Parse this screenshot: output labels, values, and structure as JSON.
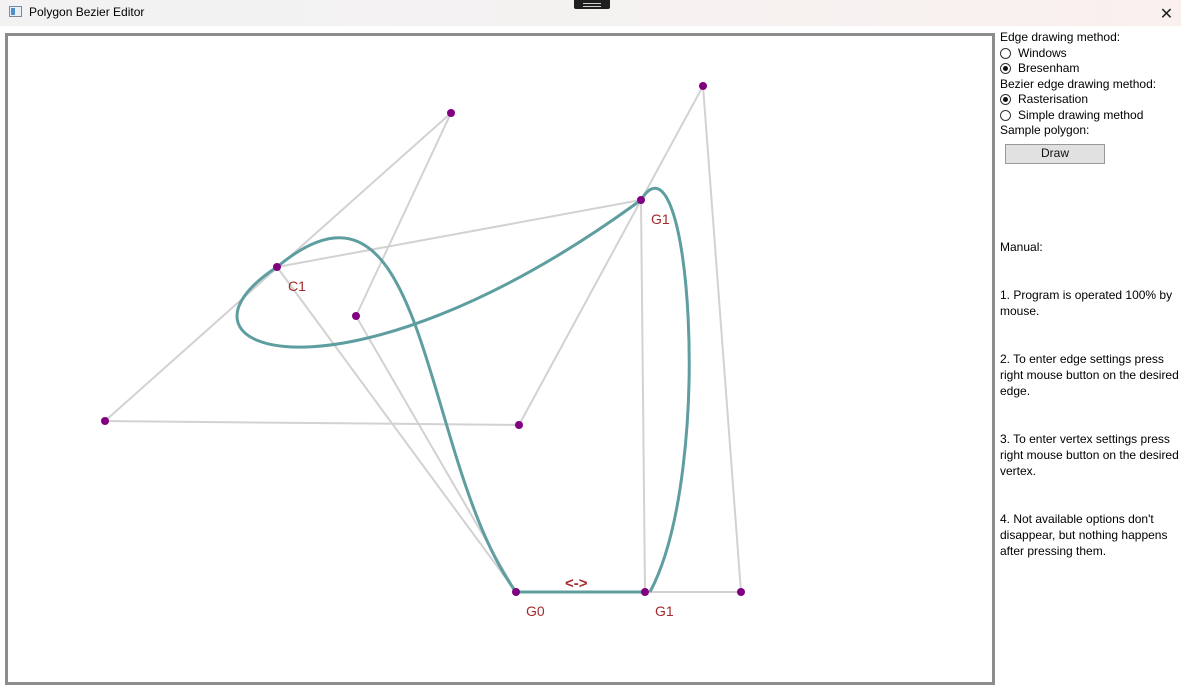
{
  "window": {
    "title": "Polygon Bezier Editor",
    "close_glyph": "✕"
  },
  "panel": {
    "edge_method_label": "Edge drawing method:",
    "edge_options": [
      {
        "label": "Windows",
        "checked": false
      },
      {
        "label": "Bresenham",
        "checked": true
      }
    ],
    "bezier_method_label": "Bezier edge drawing method:",
    "bezier_options": [
      {
        "label": "Rasterisation",
        "checked": true
      },
      {
        "label": "Simple drawing method",
        "checked": false
      }
    ],
    "sample_label": "Sample polygon:",
    "draw_button": "Draw",
    "manual_title": "Manual:",
    "manual_lines": [
      "1. Program is operated 100% by mouse.",
      "2. To enter edge settings press right mouse button on the desired edge.",
      "3. To enter vertex settings press right mouse button on the desired vertex.",
      "4. Not available options don't disappear, but nothing happens after pressing them."
    ]
  },
  "canvas": {
    "colors": {
      "polygon_edge": "#d2d2d2",
      "bezier_curve": "#5f9ea0",
      "vertex": "#800080",
      "label": "#a52a2a"
    },
    "vertex_labels": [
      "C1",
      "G1",
      "G0",
      "G1"
    ],
    "edge_label": "<->"
  }
}
